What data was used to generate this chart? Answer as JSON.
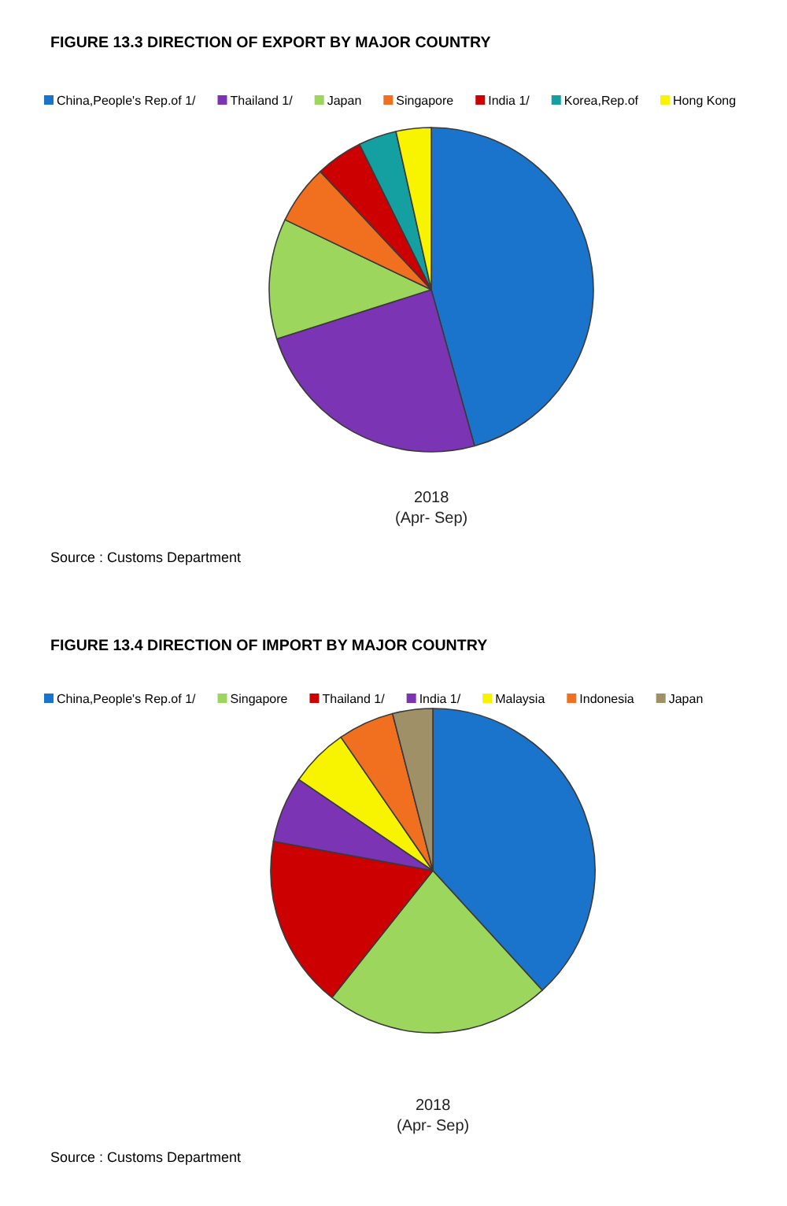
{
  "chart_data": [
    {
      "type": "pie",
      "title": "FIGURE 13.3 DIRECTION OF EXPORT BY MAJOR COUNTRY",
      "categories": [
        "China,People's Rep.of 1/",
        "Thailand 1/",
        "Japan",
        "Singapore",
        "India 1/",
        "Korea,Rep.of",
        "Hong Kong"
      ],
      "values": [
        45.7,
        24.4,
        12.0,
        5.9,
        4.7,
        3.8,
        3.5
      ],
      "colors": [
        "#1a74cc",
        "#7a34b4",
        "#9cd65c",
        "#f07020",
        "#cc0000",
        "#14a0a0",
        "#f8f400"
      ],
      "xlabel": "2018\n(Apr- Sep)",
      "annotations": [
        "Source : Customs Department"
      ],
      "legend": "top"
    },
    {
      "type": "pie",
      "title": "FIGURE 13.4 DIRECTION OF IMPORT BY MAJOR COUNTRY",
      "categories": [
        "China,People's Rep.of 1/",
        "Singapore",
        "Thailand 1/",
        "India 1/",
        "Malaysia",
        "Indonesia",
        "Japan"
      ],
      "values": [
        38.2,
        22.5,
        17.2,
        6.6,
        5.9,
        5.6,
        4.0
      ],
      "colors": [
        "#1a74cc",
        "#9cd65c",
        "#cc0000",
        "#7a34b4",
        "#f8f400",
        "#f07020",
        "#a09068"
      ],
      "xlabel": "2018\n(Apr- Sep)",
      "annotations": [
        "Source : Customs Department"
      ],
      "legend": "top"
    }
  ]
}
